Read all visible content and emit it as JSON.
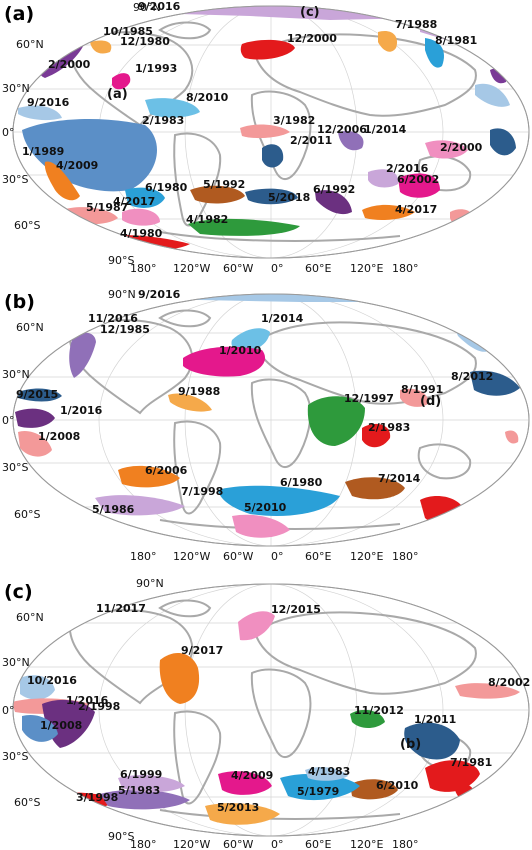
{
  "panels": [
    {
      "letter": "(a)",
      "lat_labels": [
        "90°N",
        "60°N",
        "30°N",
        "0°",
        "30°S",
        "60°S",
        "90°S"
      ],
      "lon_labels": [
        "180°",
        "120°W",
        "60°W",
        "0°",
        "60°E",
        "120°E",
        "180°"
      ],
      "marker_labels": [
        "(a)",
        "(c)"
      ],
      "events": [
        "9/2016",
        "10/1985",
        "12/1980",
        "2/2000",
        "1/1993",
        "12/2000",
        "7/1988",
        "8/1981",
        "9/2016",
        "8/2010",
        "2/1983",
        "3/1982",
        "12/2006",
        "1/2014",
        "2/2011",
        "1/1989",
        "2/2000",
        "2/2016",
        "6/2002",
        "4/2009",
        "6/1980",
        "5/1992",
        "6/1992",
        "5/2018",
        "4/2017",
        "5/1987",
        "4/2017",
        "4/1982",
        "4/1980"
      ]
    },
    {
      "letter": "(b)",
      "lat_labels": [
        "90°N",
        "60°N",
        "30°N",
        "0°",
        "30°S",
        "60°S"
      ],
      "lon_labels": [
        "180°",
        "120°W",
        "60°W",
        "0°",
        "60°E",
        "120°E",
        "180°"
      ],
      "marker_labels": [
        "(d)"
      ],
      "events": [
        "9/2016",
        "11/2016",
        "12/1985",
        "1/2014",
        "1/2010",
        "9/1988",
        "9/2015",
        "1/2016",
        "1/2008",
        "8/1991",
        "8/2012",
        "12/1997",
        "2/1983",
        "6/2006",
        "7/1998",
        "6/1980",
        "5/2010",
        "7/2014",
        "5/1986"
      ]
    },
    {
      "letter": "(c)",
      "lat_labels": [
        "90°N",
        "60°N",
        "30°N",
        "0°",
        "30°S",
        "60°S",
        "90°S"
      ],
      "lon_labels": [
        "180°",
        "120°W",
        "60°W",
        "0°",
        "60°E",
        "120°E",
        "180°"
      ],
      "marker_labels": [
        "(b)"
      ],
      "events": [
        "11/2017",
        "12/2015",
        "9/2017",
        "8/2002",
        "10/2016",
        "1/2016",
        "2/1998",
        "1/2008",
        "11/2012",
        "1/2011",
        "7/1981",
        "6/1999",
        "5/1983",
        "3/1998",
        "4/2009",
        "4/1983",
        "5/1979",
        "6/2010",
        "5/2013"
      ]
    }
  ],
  "colors": {
    "coast": "#a9a9a9",
    "grid": "#d0d0d0",
    "frame": "#9a9a9a",
    "ocean": "#ffffff"
  }
}
